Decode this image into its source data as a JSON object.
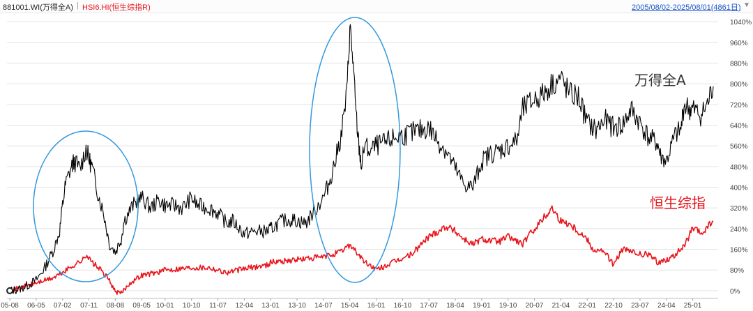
{
  "header": {
    "primary_label": "881001.WI(万得全A)",
    "separator": "|",
    "secondary_label": "HSI6.HI(恒生综指R)",
    "date_range": "2005/08/02-2025/08/01(4861日)",
    "dropdown_icon": "triangle-down-icon"
  },
  "colors": {
    "series_1": "#000000",
    "series_2": "#e8141b",
    "circle": "#3399dd",
    "grid": "#e4e4e4",
    "axis_text": "#444444",
    "header_blue": "#1a55c6"
  },
  "annotations": {
    "wind_label": "万得全A",
    "hsi_label": "恒生综指"
  },
  "chart_data": {
    "type": "line",
    "title": "",
    "xlabel": "",
    "ylabel": "",
    "x_ticks": [
      "05-08",
      "06-05",
      "07-02",
      "07-11",
      "08-08",
      "09-05",
      "10-01",
      "10-10",
      "11-07",
      "12-04",
      "13-01",
      "13-10",
      "14-07",
      "15-04",
      "16-01",
      "16-10",
      "17-07",
      "18-04",
      "19-01",
      "19-10",
      "20-07",
      "21-04",
      "22-01",
      "22-10",
      "23-07",
      "24-04",
      "25-01"
    ],
    "y_ticks": [
      "0%",
      "80%",
      "160%",
      "240%",
      "320%",
      "400%",
      "480%",
      "560%",
      "640%",
      "720%",
      "800%",
      "880%",
      "960%",
      "1040%"
    ],
    "ylim": [
      -30,
      1070
    ],
    "grid": true,
    "series": [
      {
        "name": "881001.WI(万得全A)",
        "x": [
          "05-08",
          "05-11",
          "06-02",
          "06-05",
          "06-08",
          "06-11",
          "07-01",
          "07-02",
          "07-03",
          "07-05",
          "07-06",
          "07-08",
          "07-10",
          "07-11",
          "07-12",
          "08-02",
          "08-04",
          "08-06",
          "08-08",
          "08-10",
          "08-11",
          "09-02",
          "09-05",
          "09-08",
          "09-11",
          "10-01",
          "10-04",
          "10-07",
          "10-10",
          "10-12",
          "11-04",
          "11-07",
          "11-10",
          "11-12",
          "12-04",
          "12-08",
          "12-12",
          "13-01",
          "13-05",
          "13-08",
          "13-10",
          "14-01",
          "14-04",
          "14-07",
          "14-09",
          "14-11",
          "15-01",
          "15-03",
          "15-04",
          "15-05",
          "15-06",
          "15-07",
          "15-08",
          "15-09",
          "15-11",
          "16-01",
          "16-04",
          "16-07",
          "16-10",
          "17-01",
          "17-04",
          "17-07",
          "17-10",
          "18-01",
          "18-04",
          "18-07",
          "18-10",
          "19-01",
          "19-04",
          "19-07",
          "19-10",
          "20-01",
          "20-03",
          "20-07",
          "20-10",
          "21-01",
          "21-04",
          "21-07",
          "21-10",
          "22-01",
          "22-04",
          "22-07",
          "22-10",
          "23-01",
          "23-04",
          "23-07",
          "23-10",
          "24-01",
          "24-02",
          "24-04",
          "24-07",
          "24-09",
          "24-10",
          "24-12",
          "25-01",
          "25-04",
          "25-06",
          "25-08"
        ],
        "values": [
          0,
          5,
          20,
          40,
          90,
          160,
          230,
          330,
          410,
          480,
          500,
          470,
          550,
          510,
          480,
          380,
          300,
          180,
          150,
          200,
          270,
          330,
          360,
          320,
          350,
          330,
          330,
          320,
          360,
          330,
          320,
          300,
          260,
          270,
          220,
          230,
          230,
          240,
          270,
          275,
          270,
          260,
          310,
          360,
          420,
          500,
          600,
          760,
          1020,
          900,
          700,
          570,
          480,
          560,
          540,
          560,
          570,
          590,
          600,
          610,
          620,
          630,
          580,
          540,
          470,
          410,
          400,
          500,
          530,
          540,
          560,
          580,
          700,
          740,
          760,
          800,
          820,
          760,
          750,
          650,
          620,
          660,
          630,
          640,
          700,
          650,
          590,
          570,
          520,
          500,
          600,
          620,
          720,
          700,
          700,
          680,
          720,
          790
        ]
      },
      {
        "name": "HSI6.HI(恒生综指R)",
        "x": [
          "05-08",
          "06-05",
          "06-11",
          "07-02",
          "07-06",
          "07-09",
          "07-10",
          "07-12",
          "08-03",
          "08-06",
          "08-08",
          "08-10",
          "09-01",
          "09-05",
          "09-10",
          "10-01",
          "10-10",
          "11-04",
          "11-07",
          "11-10",
          "12-04",
          "12-12",
          "13-01",
          "13-10",
          "14-07",
          "15-01",
          "15-04",
          "15-07",
          "15-09",
          "15-12",
          "16-01",
          "16-07",
          "17-01",
          "17-07",
          "18-01",
          "18-04",
          "18-07",
          "18-10",
          "19-01",
          "19-07",
          "19-10",
          "20-03",
          "20-07",
          "21-01",
          "21-04",
          "21-07",
          "21-10",
          "22-01",
          "22-03",
          "22-07",
          "22-10",
          "23-01",
          "23-07",
          "23-10",
          "24-01",
          "24-04",
          "24-06",
          "24-10",
          "25-01",
          "25-04",
          "25-08"
        ],
        "values": [
          0,
          30,
          50,
          70,
          100,
          120,
          140,
          110,
          80,
          40,
          -5,
          -10,
          30,
          60,
          70,
          80,
          90,
          90,
          80,
          70,
          85,
          100,
          110,
          120,
          130,
          150,
          180,
          140,
          110,
          90,
          80,
          110,
          140,
          210,
          250,
          230,
          200,
          180,
          200,
          190,
          210,
          180,
          240,
          320,
          270,
          260,
          230,
          200,
          160,
          150,
          100,
          160,
          140,
          140,
          110,
          120,
          130,
          170,
          240,
          220,
          270
        ]
      }
    ]
  }
}
